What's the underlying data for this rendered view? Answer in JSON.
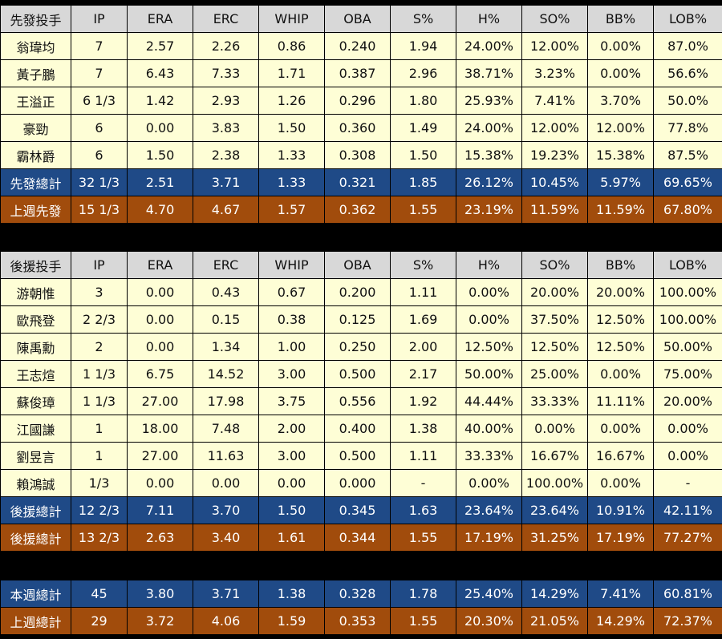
{
  "columns": [
    "IP",
    "ERA",
    "ERC",
    "WHIP",
    "OBA",
    "S%",
    "H%",
    "SO%",
    "BB%",
    "LOB%"
  ],
  "starters": {
    "title": "先發投手",
    "rows": [
      [
        "翁瑋均",
        "7",
        "2.57",
        "2.26",
        "0.86",
        "0.240",
        "1.94",
        "24.00%",
        "12.00%",
        "0.00%",
        "87.0%"
      ],
      [
        "黃子鵬",
        "7",
        "6.43",
        "7.33",
        "1.71",
        "0.387",
        "2.96",
        "38.71%",
        "3.23%",
        "0.00%",
        "56.6%"
      ],
      [
        "王溢正",
        "6 1/3",
        "1.42",
        "2.93",
        "1.26",
        "0.296",
        "1.80",
        "25.93%",
        "7.41%",
        "3.70%",
        "50.0%"
      ],
      [
        "豪勁",
        "6",
        "0.00",
        "3.83",
        "1.50",
        "0.360",
        "1.49",
        "24.00%",
        "12.00%",
        "12.00%",
        "77.8%"
      ],
      [
        "霸林爵",
        "6",
        "1.50",
        "2.38",
        "1.33",
        "0.308",
        "1.50",
        "15.38%",
        "19.23%",
        "15.38%",
        "87.5%"
      ]
    ],
    "total": [
      "先發總計",
      "32 1/3",
      "2.51",
      "3.71",
      "1.33",
      "0.321",
      "1.85",
      "26.12%",
      "10.45%",
      "5.97%",
      "69.65%"
    ],
    "last_week": [
      "上週先發",
      "15 1/3",
      "4.70",
      "4.67",
      "1.57",
      "0.362",
      "1.55",
      "23.19%",
      "11.59%",
      "11.59%",
      "67.80%"
    ]
  },
  "relievers": {
    "title": "後援投手",
    "rows": [
      [
        "游朝惟",
        "3",
        "0.00",
        "0.43",
        "0.67",
        "0.200",
        "1.11",
        "0.00%",
        "20.00%",
        "20.00%",
        "100.00%"
      ],
      [
        "歐飛登",
        "2 2/3",
        "0.00",
        "0.15",
        "0.38",
        "0.125",
        "1.69",
        "0.00%",
        "37.50%",
        "12.50%",
        "100.00%"
      ],
      [
        "陳禹勳",
        "2",
        "0.00",
        "1.34",
        "1.00",
        "0.250",
        "2.00",
        "12.50%",
        "12.50%",
        "12.50%",
        "50.00%"
      ],
      [
        "王志煊",
        "1 1/3",
        "6.75",
        "14.52",
        "3.00",
        "0.500",
        "2.17",
        "50.00%",
        "25.00%",
        "0.00%",
        "75.00%"
      ],
      [
        "蘇俊璋",
        "1 1/3",
        "27.00",
        "17.98",
        "3.75",
        "0.556",
        "1.92",
        "44.44%",
        "33.33%",
        "11.11%",
        "20.00%"
      ],
      [
        "江國謙",
        "1",
        "18.00",
        "7.48",
        "2.00",
        "0.400",
        "1.38",
        "40.00%",
        "0.00%",
        "0.00%",
        "0.00%"
      ],
      [
        "劉昱言",
        "1",
        "27.00",
        "11.63",
        "3.00",
        "0.500",
        "1.11",
        "33.33%",
        "16.67%",
        "16.67%",
        "0.00%"
      ],
      [
        "賴鴻誠",
        "1/3",
        "0.00",
        "0.00",
        "0.00",
        "0.000",
        "-",
        "0.00%",
        "100.00%",
        "0.00%",
        "-"
      ]
    ],
    "total": [
      "後援總計",
      "12 2/3",
      "7.11",
      "3.70",
      "1.50",
      "0.345",
      "1.63",
      "23.64%",
      "23.64%",
      "10.91%",
      "42.11%"
    ],
    "last_week": [
      "後援總計",
      "13 2/3",
      "2.63",
      "3.40",
      "1.61",
      "0.344",
      "1.55",
      "17.19%",
      "31.25%",
      "17.19%",
      "77.27%"
    ]
  },
  "overall": {
    "this_week": [
      "本週總計",
      "45",
      "3.80",
      "3.71",
      "1.38",
      "0.328",
      "1.78",
      "25.40%",
      "14.29%",
      "7.41%",
      "60.81%"
    ],
    "last_week": [
      "上週總計",
      "29",
      "3.72",
      "4.06",
      "1.59",
      "0.353",
      "1.55",
      "20.30%",
      "21.05%",
      "14.29%",
      "72.37%"
    ]
  }
}
